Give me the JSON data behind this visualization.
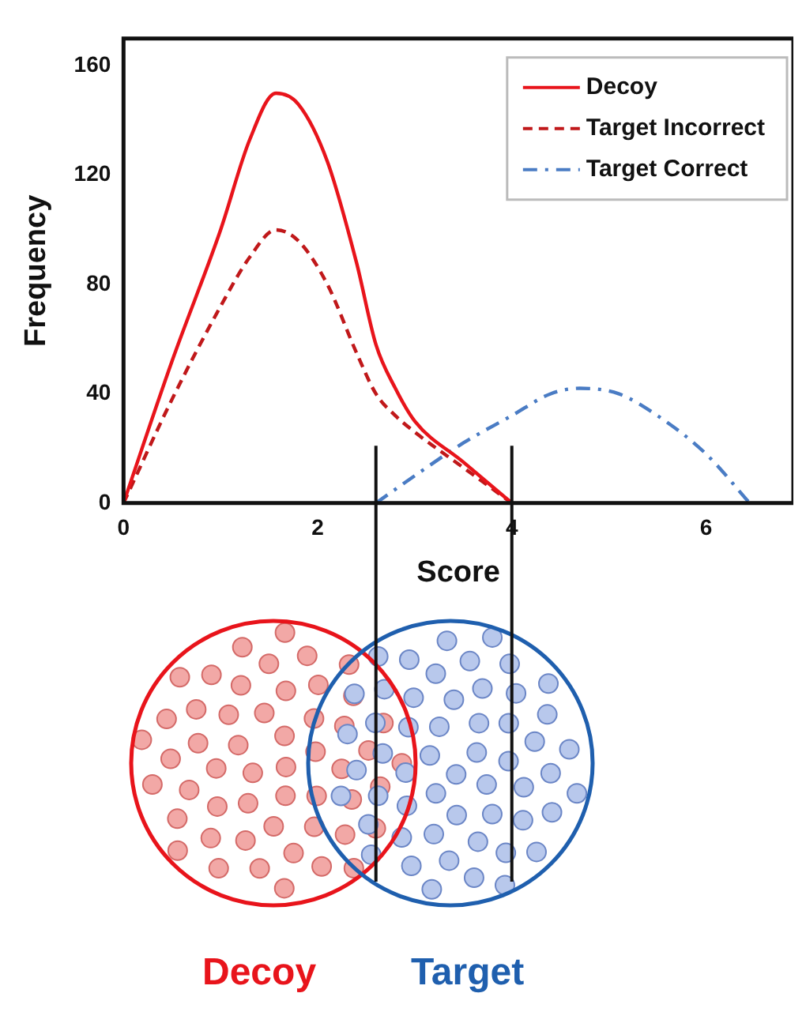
{
  "chart_data": {
    "type": "line",
    "xlabel": "Score",
    "ylabel": "Frequency",
    "xlim": [
      0,
      6.9
    ],
    "xticks": [
      0,
      2,
      4,
      6
    ],
    "ylim": [
      0,
      170
    ],
    "yticks": [
      0,
      40,
      80,
      120,
      160
    ],
    "grid": false,
    "legend": "top right",
    "marker": "none",
    "series": [
      {
        "name": "Decoy",
        "color": "#e8141b",
        "line_style": "solid",
        "x": [
          0,
          0.5,
          1,
          1.3,
          1.57,
          1.8,
          2.1,
          2.4,
          2.6,
          2.8,
          3,
          3.5,
          4
        ],
        "values": [
          0,
          52,
          100,
          133,
          150,
          146,
          125,
          88,
          58,
          42,
          30,
          15,
          0
        ]
      },
      {
        "name": "Target Incorrect",
        "color": "#c0181a",
        "line_style": "dashed",
        "x": [
          0,
          0.5,
          1,
          1.3,
          1.57,
          1.8,
          2.1,
          2.4,
          2.6,
          2.8,
          3,
          3.5,
          4
        ],
        "values": [
          0,
          38,
          72,
          90,
          100,
          96,
          80,
          55,
          40,
          32,
          26,
          13,
          0
        ]
      },
      {
        "name": "Target Correct",
        "color": "#4a7cc4",
        "line_style": "dotted",
        "x": [
          2.6,
          3,
          3.5,
          4,
          4.4,
          4.7,
          5.1,
          5.5,
          6,
          6.45
        ],
        "values": [
          0,
          10,
          22,
          32,
          40,
          42,
          40,
          32,
          18,
          0
        ]
      }
    ],
    "ref_lines": [
      {
        "axis": "x",
        "value": 2.6,
        "color": "#111111"
      },
      {
        "axis": "x",
        "value": 4,
        "color": "#111111"
      }
    ],
    "annotations": [
      "Decoy",
      "Target"
    ]
  }
}
